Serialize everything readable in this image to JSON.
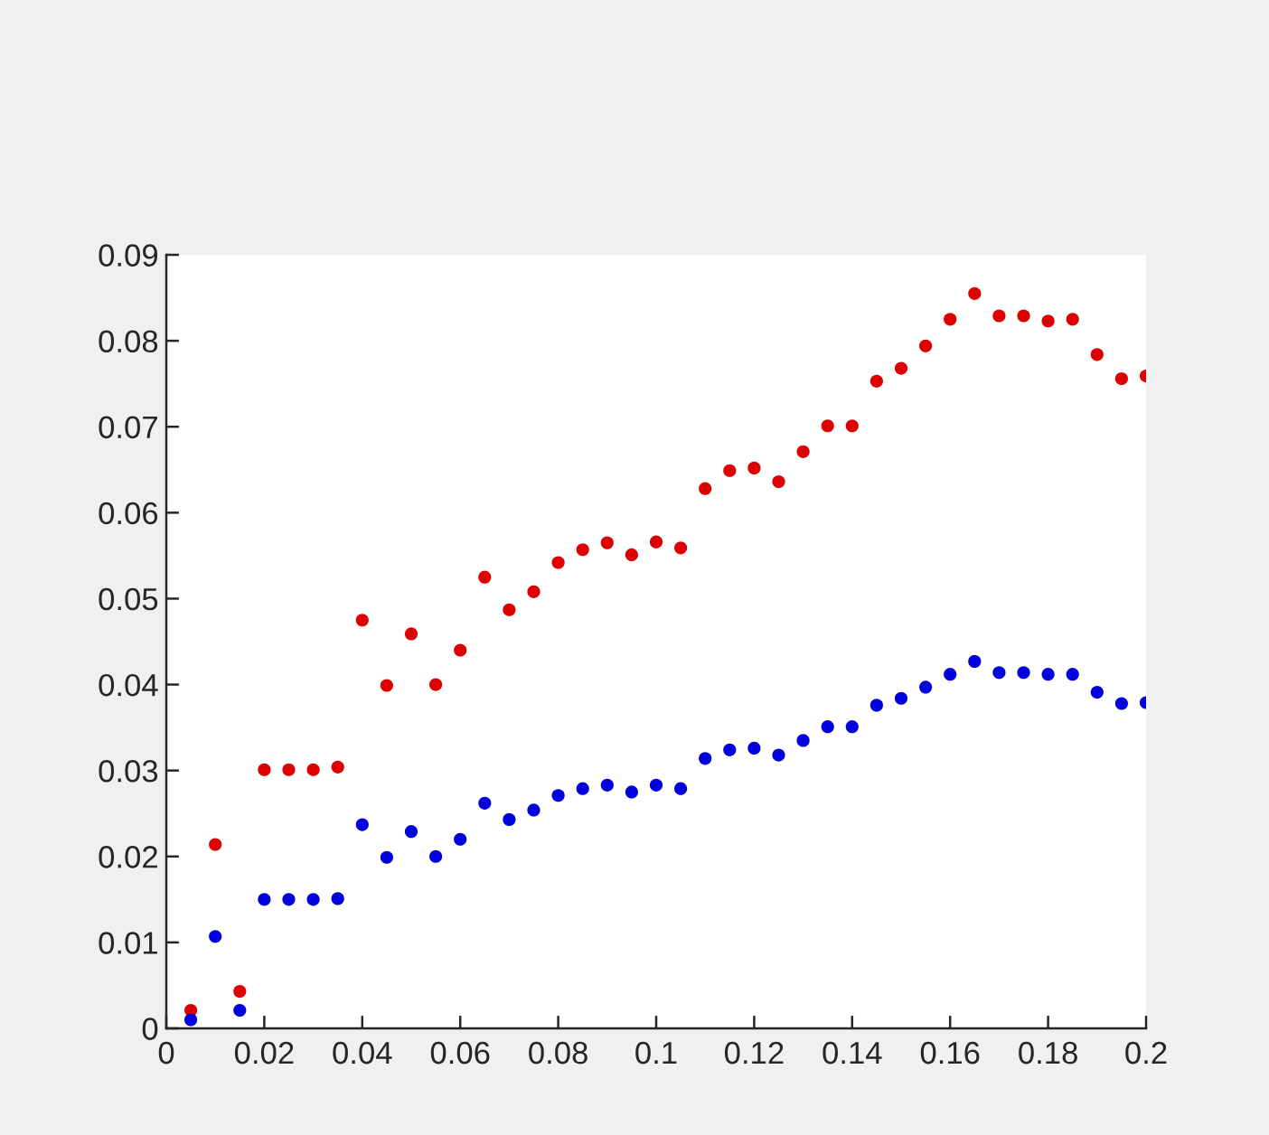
{
  "chart_data": {
    "type": "scatter",
    "x": [
      0.005,
      0.01,
      0.015,
      0.02,
      0.025,
      0.03,
      0.035,
      0.04,
      0.045,
      0.05,
      0.055,
      0.06,
      0.065,
      0.07,
      0.075,
      0.08,
      0.085,
      0.09,
      0.095,
      0.1,
      0.105,
      0.11,
      0.115,
      0.12,
      0.125,
      0.13,
      0.135,
      0.14,
      0.145,
      0.15,
      0.155,
      0.16,
      0.165,
      0.17,
      0.175,
      0.18,
      0.185,
      0.19,
      0.195,
      0.2
    ],
    "series": [
      {
        "color": "#dd0000",
        "values": [
          0.0021,
          0.0214,
          0.0043,
          0.0301,
          0.0301,
          0.0301,
          0.0304,
          0.0475,
          0.0399,
          0.0459,
          0.04,
          0.044,
          0.0525,
          0.0487,
          0.0508,
          0.0542,
          0.0557,
          0.0565,
          0.0551,
          0.0566,
          0.0559,
          0.0628,
          0.0649,
          0.0652,
          0.0636,
          0.0671,
          0.0701,
          0.0701,
          0.0753,
          0.0768,
          0.0794,
          0.0825,
          0.0855,
          0.0829,
          0.0829,
          0.0823,
          0.0825,
          0.0784,
          0.0756,
          0.0759
        ]
      },
      {
        "color": "#0000dd",
        "values": [
          0.001,
          0.0107,
          0.0021,
          0.015,
          0.015,
          0.015,
          0.0151,
          0.0237,
          0.0199,
          0.0229,
          0.02,
          0.022,
          0.0262,
          0.0243,
          0.0254,
          0.0271,
          0.0279,
          0.0283,
          0.0275,
          0.0283,
          0.0279,
          0.0314,
          0.0324,
          0.0326,
          0.0318,
          0.0335,
          0.0351,
          0.0351,
          0.0376,
          0.0384,
          0.0397,
          0.0412,
          0.0427,
          0.0414,
          0.0414,
          0.0412,
          0.0412,
          0.0391,
          0.0378,
          0.0379
        ]
      }
    ],
    "xlim": [
      0,
      0.2
    ],
    "xticks": [
      0,
      0.02,
      0.04,
      0.06,
      0.08,
      0.1,
      0.12,
      0.14,
      0.16,
      0.18,
      0.2
    ],
    "ylim": [
      0,
      0.09
    ],
    "yticks": [
      0,
      0.01,
      0.02,
      0.03,
      0.04,
      0.05,
      0.06,
      0.07,
      0.08,
      0.09
    ],
    "marker": "circle"
  }
}
